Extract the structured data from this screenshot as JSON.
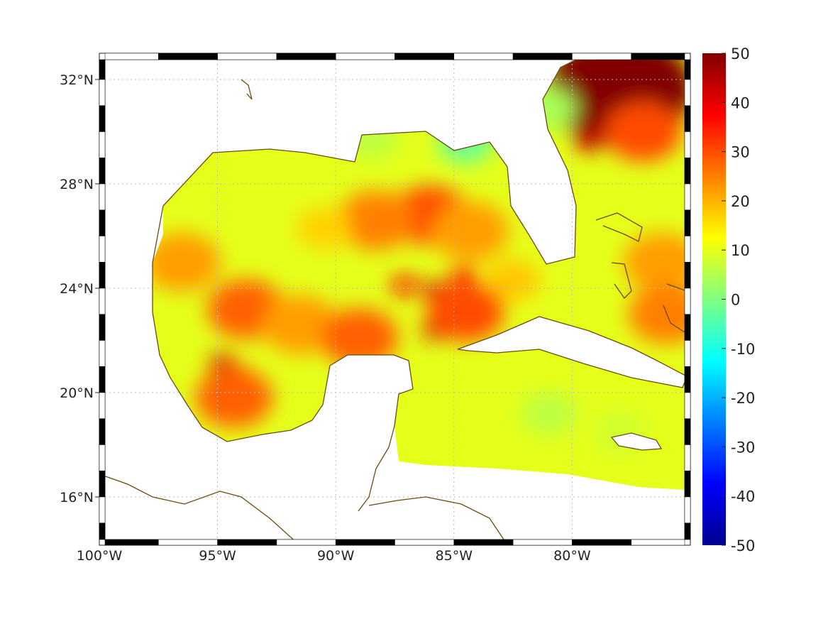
{
  "chart_data": {
    "type": "heatmap",
    "title": "",
    "x_ticks": [
      "100°W",
      "95°W",
      "90°W",
      "85°W",
      "80°W"
    ],
    "x_tick_values": [
      -100,
      -95,
      -90,
      -85,
      -80
    ],
    "y_ticks": [
      "32°N",
      "28°N",
      "24°N",
      "20°N",
      "16°N"
    ],
    "y_tick_values": [
      32,
      28,
      24,
      20,
      16
    ],
    "xlim": [
      -100,
      -75
    ],
    "ylim": [
      14.1,
      33
    ],
    "grid": true,
    "colormap": "jet",
    "colorbar": {
      "range": [
        -50,
        50
      ],
      "ticks": [
        "50",
        "40",
        "30",
        "20",
        "10",
        "0",
        "-10",
        "-20",
        "-30",
        "-40",
        "-50"
      ],
      "placement": "right"
    },
    "background_value": 10,
    "features": [
      {
        "lon": -78,
        "lat": 31.6,
        "value": 50
      },
      {
        "lon": -79.3,
        "lat": 29.6,
        "value": 42
      },
      {
        "lon": -77,
        "lat": 30,
        "value": 30
      },
      {
        "lon": -86,
        "lat": 26.8,
        "value": 30
      },
      {
        "lon": -88.3,
        "lat": 26.6,
        "value": 25
      },
      {
        "lon": -84.3,
        "lat": 26.2,
        "value": 22
      },
      {
        "lon": -90.5,
        "lat": 26.3,
        "value": 17
      },
      {
        "lon": -82.5,
        "lat": 24.3,
        "value": 18
      },
      {
        "lon": -85.8,
        "lat": 23.9,
        "value": 42
      },
      {
        "lon": -87.1,
        "lat": 24.1,
        "value": 36
      },
      {
        "lon": -84.6,
        "lat": 24.5,
        "value": 36
      },
      {
        "lon": -85.8,
        "lat": 22.4,
        "value": 42
      },
      {
        "lon": -84.5,
        "lat": 23.1,
        "value": 30
      },
      {
        "lon": -94.8,
        "lat": 21.1,
        "value": 42
      },
      {
        "lon": -94.2,
        "lat": 20.7,
        "value": 36
      },
      {
        "lon": -93.8,
        "lat": 23.2,
        "value": 28
      },
      {
        "lon": -94.3,
        "lat": 19.8,
        "value": 28
      },
      {
        "lon": -96.5,
        "lat": 25,
        "value": 22
      },
      {
        "lon": -91.5,
        "lat": 22.6,
        "value": 22
      },
      {
        "lon": -89,
        "lat": 22.1,
        "value": 28
      },
      {
        "lon": -84.5,
        "lat": 29.6,
        "value": -2
      },
      {
        "lon": -88.5,
        "lat": 29.8,
        "value": 6
      },
      {
        "lon": -81,
        "lat": 30.9,
        "value": 4
      },
      {
        "lon": -81,
        "lat": 19.2,
        "value": 6
      },
      {
        "lon": -78,
        "lat": 18.5,
        "value": 8
      },
      {
        "lon": -76.2,
        "lat": 25,
        "value": 22
      },
      {
        "lon": -76,
        "lat": 23,
        "value": 25
      }
    ]
  }
}
